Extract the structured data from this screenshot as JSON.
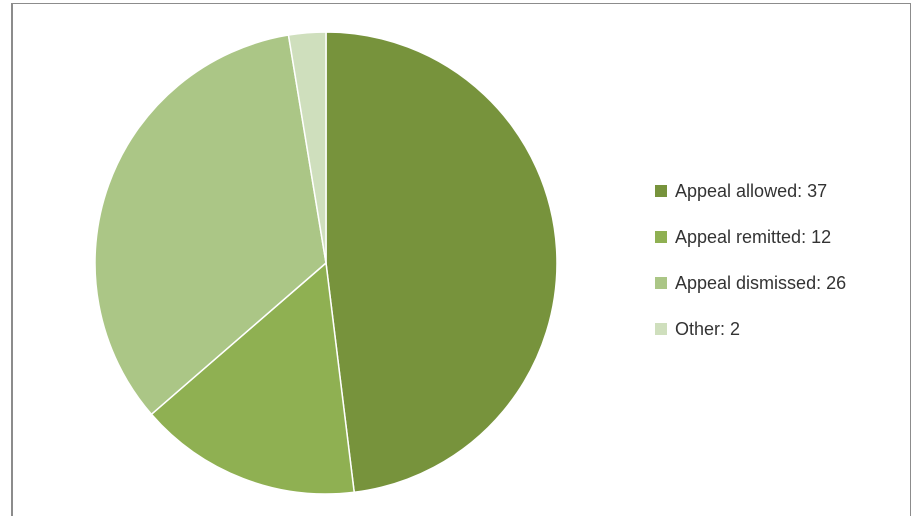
{
  "chart_data": {
    "type": "pie",
    "title": "",
    "slices": [
      {
        "name": "Appeal allowed",
        "value": 37,
        "label": "Appeal allowed: 37",
        "color": "#77933c"
      },
      {
        "name": "Appeal remitted",
        "value": 12,
        "label": "Appeal remitted: 12",
        "color": "#8fb052"
      },
      {
        "name": "Appeal dismissed",
        "value": 26,
        "label": "Appeal dismissed: 26",
        "color": "#abc686"
      },
      {
        "name": "Other",
        "value": 2,
        "label": "Other: 2",
        "color": "#cfdfbd"
      }
    ],
    "legend_position": "right",
    "start_angle": "12 o'clock",
    "direction": "clockwise"
  }
}
